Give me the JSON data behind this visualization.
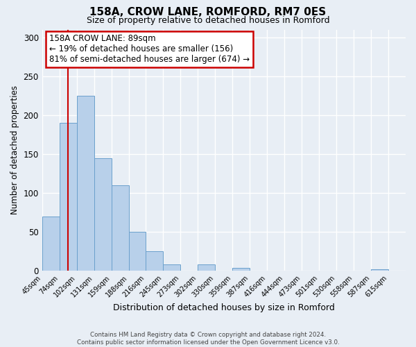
{
  "title": "158A, CROW LANE, ROMFORD, RM7 0ES",
  "subtitle": "Size of property relative to detached houses in Romford",
  "xlabel": "Distribution of detached houses by size in Romford",
  "ylabel": "Number of detached properties",
  "bin_labels": [
    "45sqm",
    "74sqm",
    "102sqm",
    "131sqm",
    "159sqm",
    "188sqm",
    "216sqm",
    "245sqm",
    "273sqm",
    "302sqm",
    "330sqm",
    "359sqm",
    "387sqm",
    "416sqm",
    "444sqm",
    "473sqm",
    "501sqm",
    "530sqm",
    "558sqm",
    "587sqm",
    "615sqm"
  ],
  "bar_values": [
    70,
    190,
    225,
    145,
    110,
    50,
    25,
    8,
    0,
    8,
    0,
    4,
    0,
    0,
    0,
    0,
    0,
    0,
    0,
    2,
    0
  ],
  "bar_color": "#b8d0ea",
  "bar_edge_color": "#6aa0cc",
  "vline_x": 1.5,
  "vline_color": "#cc0000",
  "ylim": [
    0,
    310
  ],
  "yticks": [
    0,
    50,
    100,
    150,
    200,
    250,
    300
  ],
  "annotation_title": "158A CROW LANE: 89sqm",
  "annotation_line1": "← 19% of detached houses are smaller (156)",
  "annotation_line2": "81% of semi-detached houses are larger (674) →",
  "annotation_box_color": "#ffffff",
  "annotation_box_edge_color": "#cc0000",
  "footer1": "Contains HM Land Registry data © Crown copyright and database right 2024.",
  "footer2": "Contains public sector information licensed under the Open Government Licence v3.0.",
  "background_color": "#e8eef5",
  "grid_color": "#ffffff"
}
